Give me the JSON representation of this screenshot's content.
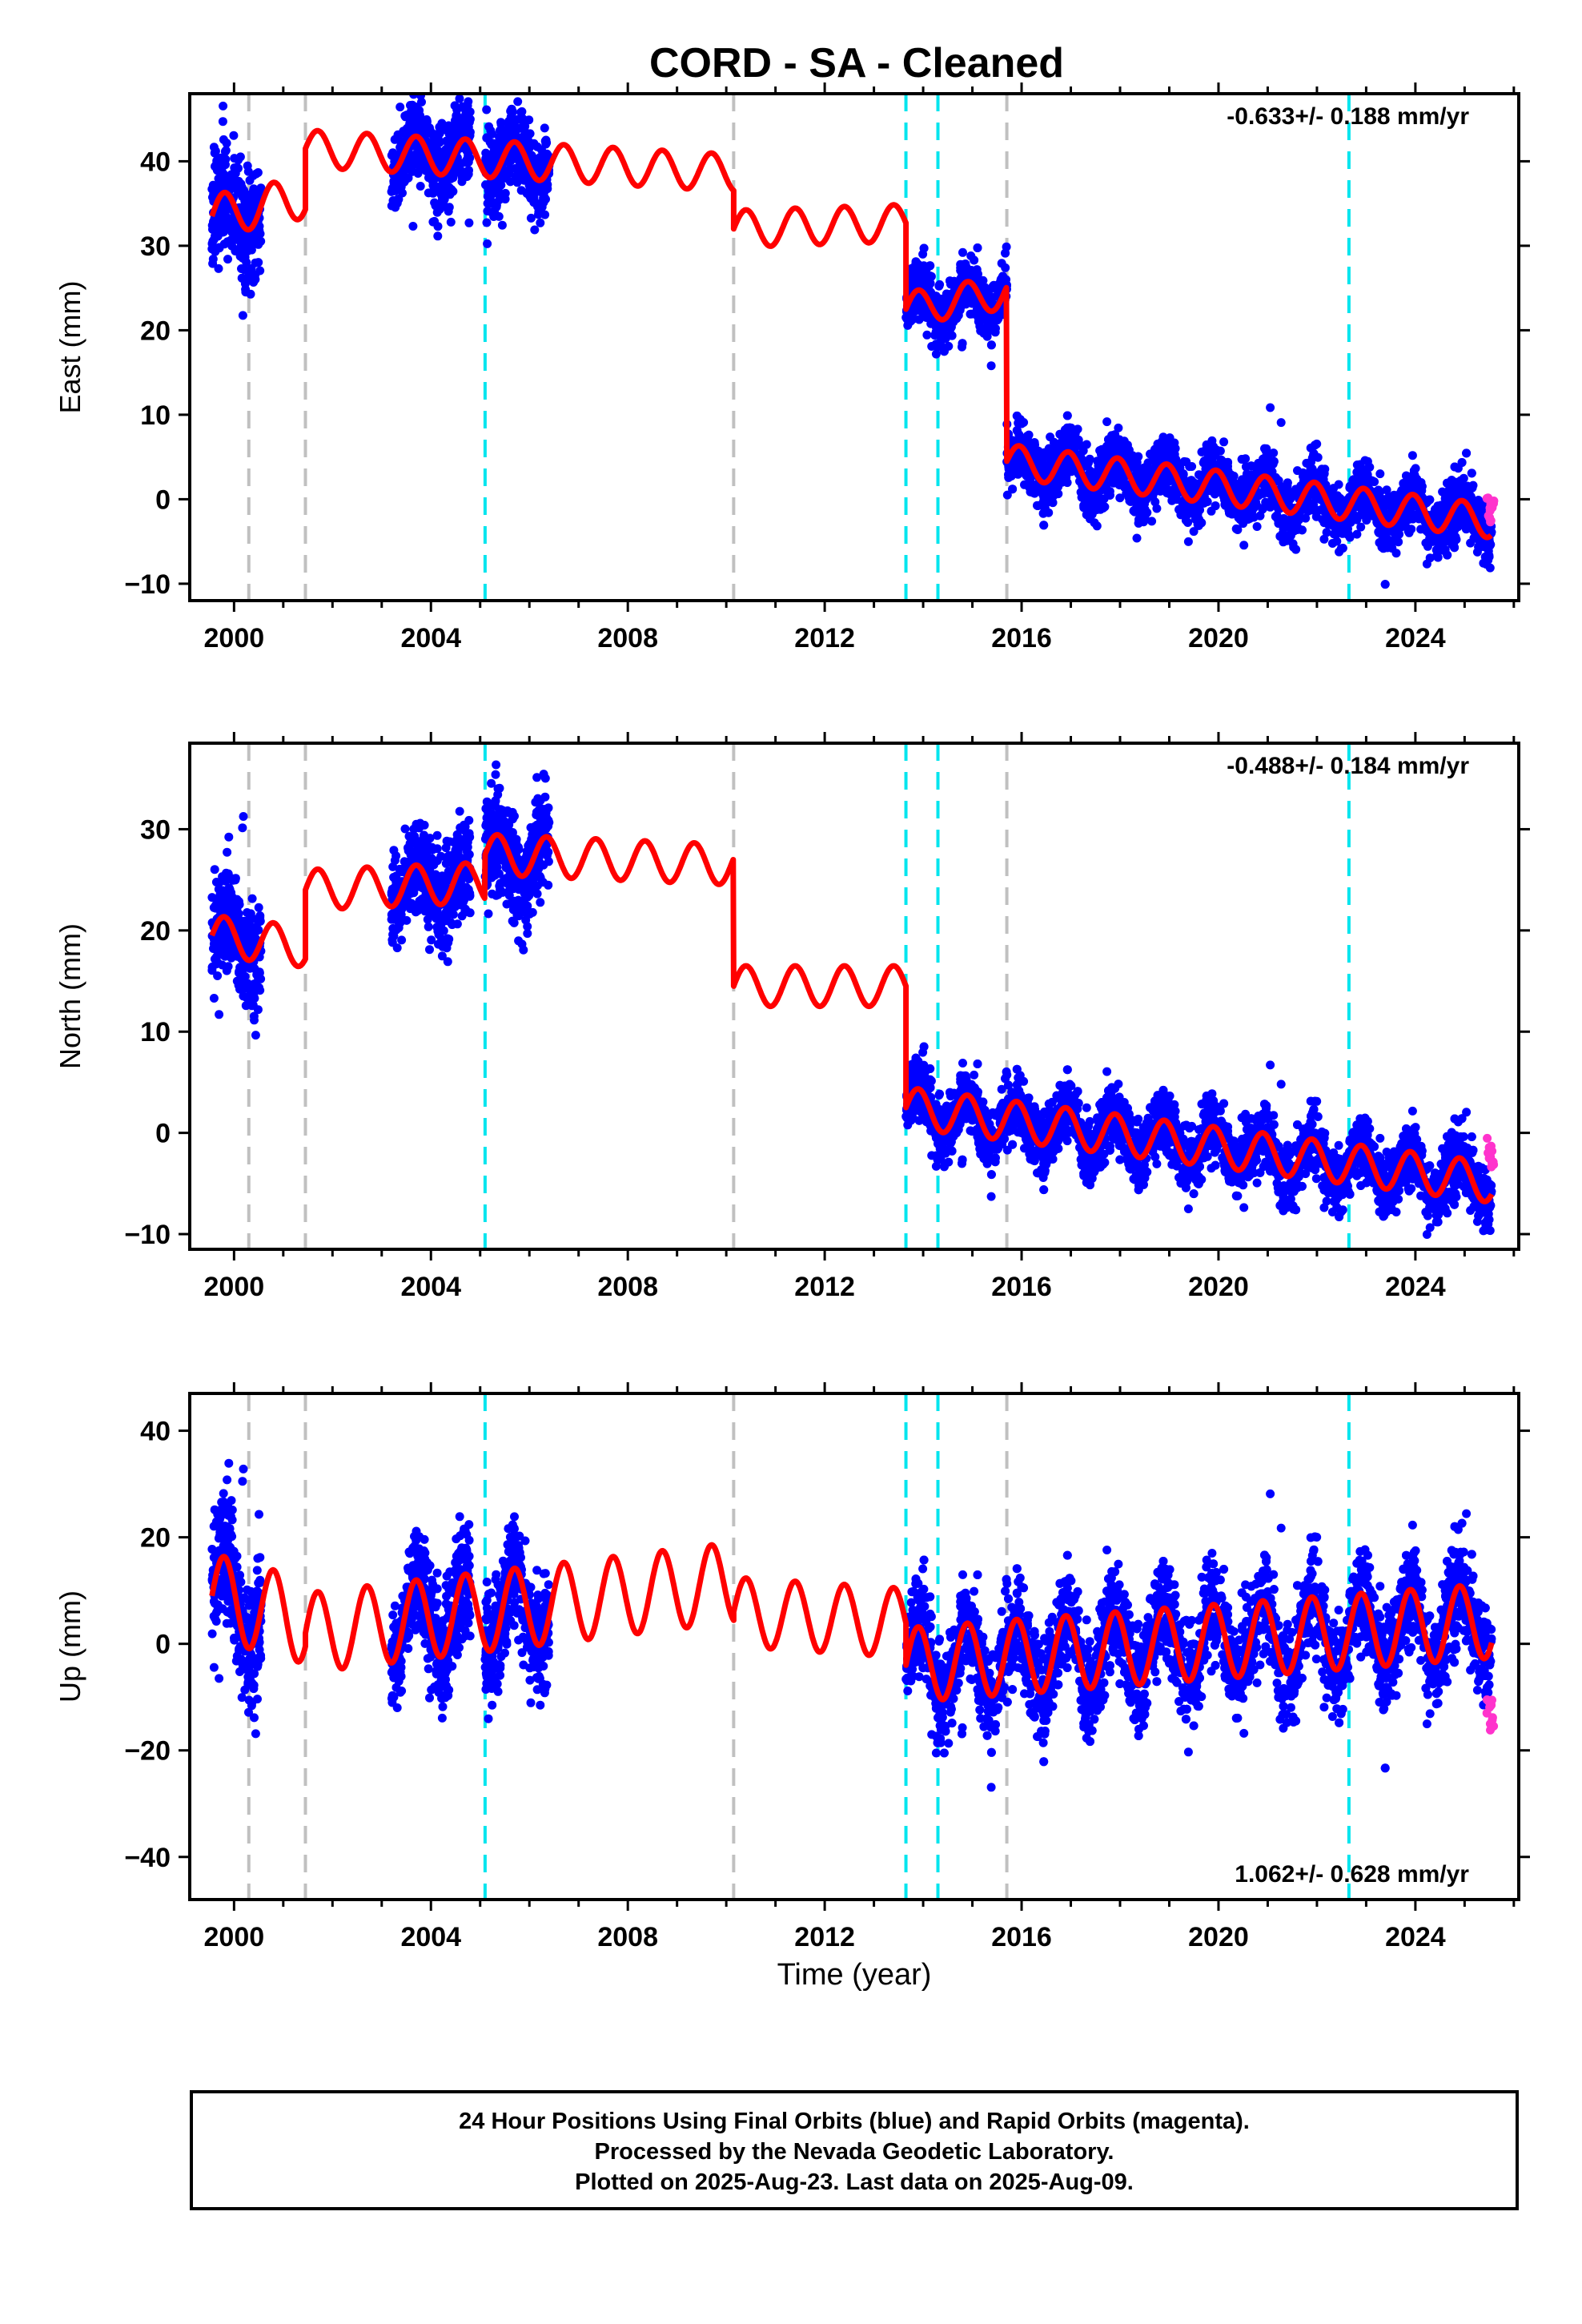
{
  "title": "CORD  - SA - Cleaned",
  "xlabel": "Time (year)",
  "colors": {
    "final_orbits": "#0000ff",
    "rapid_orbits": "#ff33cc",
    "model": "#ff0000",
    "equipment_change": "#c0c0c0",
    "earthquake": "#00e5ee"
  },
  "footer": {
    "line1": "24 Hour Positions Using Final Orbits (blue) and Rapid Orbits (magenta).",
    "line2": "Processed by the Nevada Geodetic Laboratory.",
    "line3": "Plotted on 2025-Aug-23. Last data on 2025-Aug-09."
  },
  "chart_data": [
    {
      "type": "scatter",
      "ylabel": "East (mm)",
      "rate_label": "-0.633+/- 0.188 mm/yr",
      "xlim": [
        1999.1,
        2026.1
      ],
      "ylim": [
        -12,
        48
      ],
      "xticks": [
        2000,
        2004,
        2008,
        2012,
        2016,
        2020,
        2024
      ],
      "yticks": [
        -10,
        0,
        10,
        20,
        30,
        40
      ],
      "grid": false,
      "breaks": {
        "equipment": [
          2000.3,
          2001.45,
          2010.15,
          2015.7
        ],
        "earthquake": [
          2005.1,
          2013.65,
          2014.3,
          2022.65
        ]
      },
      "data_segments": [
        {
          "t0": 1999.55,
          "t1": 2000.55,
          "spread": 3.2
        },
        {
          "t0": 2003.2,
          "t1": 2004.8,
          "spread": 2.2
        },
        {
          "t0": 2005.1,
          "t1": 2006.4,
          "spread": 2.4
        },
        {
          "t0": 2013.65,
          "t1": 2025.55,
          "spread": 1.8
        }
      ],
      "model_segments": [
        {
          "t0": 1999.55,
          "t1": 2001.45,
          "a": 33.5,
          "b": 1.2,
          "amp": 2.5,
          "phase": 0.0
        },
        {
          "t0": 2001.45,
          "t1": 2010.15,
          "a": 41.5,
          "b": -0.33,
          "amp": 2.2,
          "phase": 0.0
        },
        {
          "t0": 2010.15,
          "t1": 2013.65,
          "a": 32.0,
          "b": 0.2,
          "amp": 2.2,
          "phase": 0.0
        },
        {
          "t0": 2013.65,
          "t1": 2015.7,
          "a": 22.5,
          "b": 1.0,
          "amp": 2.0,
          "phase": 0.0
        },
        {
          "t0": 2015.7,
          "t1": 2025.55,
          "a": 4.5,
          "b": -0.72,
          "amp": 2.0,
          "phase": 0.0
        }
      ],
      "rapid": {
        "t0": 2025.45,
        "t1": 2025.6,
        "y0": -2.8,
        "y1": 0.3
      }
    },
    {
      "type": "scatter",
      "ylabel": "North (mm)",
      "rate_label": "-0.488+/- 0.184 mm/yr",
      "xlim": [
        1999.1,
        2026.1
      ],
      "ylim": [
        -11.5,
        38.5
      ],
      "xticks": [
        2000,
        2004,
        2008,
        2012,
        2016,
        2020,
        2024
      ],
      "yticks": [
        -10,
        0,
        10,
        20,
        30
      ],
      "grid": false,
      "breaks": {
        "equipment": [
          2000.3,
          2001.45,
          2010.15,
          2015.7
        ],
        "earthquake": [
          2005.1,
          2013.65,
          2014.3,
          2022.65
        ]
      },
      "data_segments": [
        {
          "t0": 1999.55,
          "t1": 2000.55,
          "spread": 2.6
        },
        {
          "t0": 2003.2,
          "t1": 2004.8,
          "spread": 2.2
        },
        {
          "t0": 2005.1,
          "t1": 2006.4,
          "spread": 2.6
        },
        {
          "t0": 2013.65,
          "t1": 2025.55,
          "spread": 1.6
        }
      ],
      "model_segments": [
        {
          "t0": 1999.55,
          "t1": 2001.45,
          "a": 19.5,
          "b": -0.6,
          "amp": 2.0,
          "phase": 0.0
        },
        {
          "t0": 2001.45,
          "t1": 2005.1,
          "a": 24.0,
          "b": 0.2,
          "amp": 2.0,
          "phase": 0.0
        },
        {
          "t0": 2005.1,
          "t1": 2010.15,
          "a": 27.5,
          "b": -0.2,
          "amp": 2.0,
          "phase": 0.0
        },
        {
          "t0": 2010.15,
          "t1": 2013.65,
          "a": 14.5,
          "b": 0.0,
          "amp": 2.0,
          "phase": 0.0
        },
        {
          "t0": 2013.65,
          "t1": 2025.55,
          "a": 2.5,
          "b": -0.62,
          "amp": 2.0,
          "phase": 0.0
        }
      ],
      "rapid": {
        "t0": 2025.45,
        "t1": 2025.6,
        "y0": -3.5,
        "y1": -0.5
      }
    },
    {
      "type": "scatter",
      "ylabel": "Up (mm)",
      "rate_label": "1.062+/- 0.628 mm/yr",
      "xlim": [
        1999.1,
        2026.1
      ],
      "ylim": [
        -48,
        47
      ],
      "xticks": [
        2000,
        2004,
        2008,
        2012,
        2016,
        2020,
        2024
      ],
      "yticks": [
        -40,
        -20,
        0,
        20,
        40
      ],
      "grid": false,
      "breaks": {
        "equipment": [
          2000.3,
          2001.45,
          2010.15,
          2015.7
        ],
        "earthquake": [
          2005.1,
          2013.65,
          2014.3,
          2022.65
        ]
      },
      "data_segments": [
        {
          "t0": 1999.55,
          "t1": 2000.55,
          "spread": 6.0
        },
        {
          "t0": 2003.2,
          "t1": 2004.8,
          "spread": 5.0
        },
        {
          "t0": 2005.1,
          "t1": 2006.4,
          "spread": 5.0
        },
        {
          "t0": 2013.65,
          "t1": 2025.55,
          "spread": 4.8
        }
      ],
      "model_segments": [
        {
          "t0": 1999.55,
          "t1": 2001.45,
          "a": 9.0,
          "b": -2.5,
          "amp": 8.0,
          "phase": 0.0
        },
        {
          "t0": 2001.45,
          "t1": 2010.15,
          "a": 2.0,
          "b": 1.1,
          "amp": 7.5,
          "phase": 0.0
        },
        {
          "t0": 2010.15,
          "t1": 2013.65,
          "a": 6.0,
          "b": -0.6,
          "amp": 6.5,
          "phase": 0.0
        },
        {
          "t0": 2013.65,
          "t1": 2025.55,
          "a": -4.0,
          "b": 0.7,
          "amp": 7.0,
          "phase": 0.0
        }
      ],
      "rapid": {
        "t0": 2025.45,
        "t1": 2025.6,
        "y0": -17.0,
        "y1": -10.0
      }
    }
  ]
}
